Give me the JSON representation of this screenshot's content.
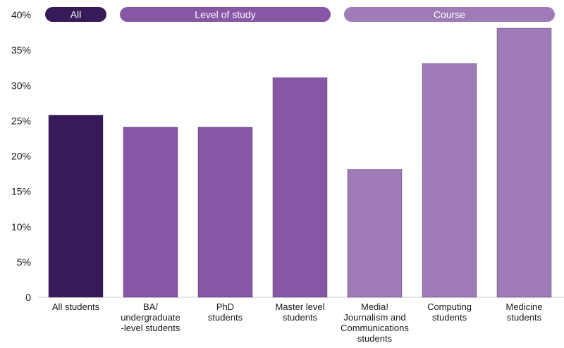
{
  "chart_data": {
    "type": "bar",
    "categories": [
      "All students",
      "BA/ undergraduate -level students",
      "PhD students",
      "Master level students",
      "Media! Journalism and Communications students",
      "Computing students",
      "Medicine students"
    ],
    "category_lines": [
      [
        "All students"
      ],
      [
        "BA/",
        "undergraduate",
        "-level students"
      ],
      [
        "PhD",
        "students"
      ],
      [
        "Master level",
        "students"
      ],
      [
        "Media!",
        "Journalism and",
        "Communications",
        "students"
      ],
      [
        "Computing",
        "students"
      ],
      [
        "Medicine",
        "students"
      ]
    ],
    "values": [
      25.8,
      24.1,
      24.1,
      31.1,
      18.1,
      33.1,
      38.1
    ],
    "groups": [
      "All",
      "Level of study",
      "Level of study",
      "Level of study",
      "Course",
      "Course",
      "Course"
    ],
    "group_headers": [
      {
        "label": "All",
        "first": 0,
        "last": 0,
        "color": "#371b59"
      },
      {
        "label": "Level of study",
        "first": 1,
        "last": 3,
        "color": "#8757a5"
      },
      {
        "label": "Course",
        "first": 4,
        "last": 6,
        "color": "#9f7bb7"
      }
    ],
    "group_colors": {
      "All": "#371b59",
      "Level of study": "#8757a5",
      "Course": "#9f7bb7"
    },
    "yticks": [
      "0",
      "5%",
      "10%",
      "15%",
      "20%",
      "25%",
      "30%",
      "35%",
      "40%"
    ],
    "ylim": [
      0,
      40
    ],
    "title": "",
    "xlabel": "",
    "ylabel": "",
    "grid": false,
    "legend": "top"
  }
}
